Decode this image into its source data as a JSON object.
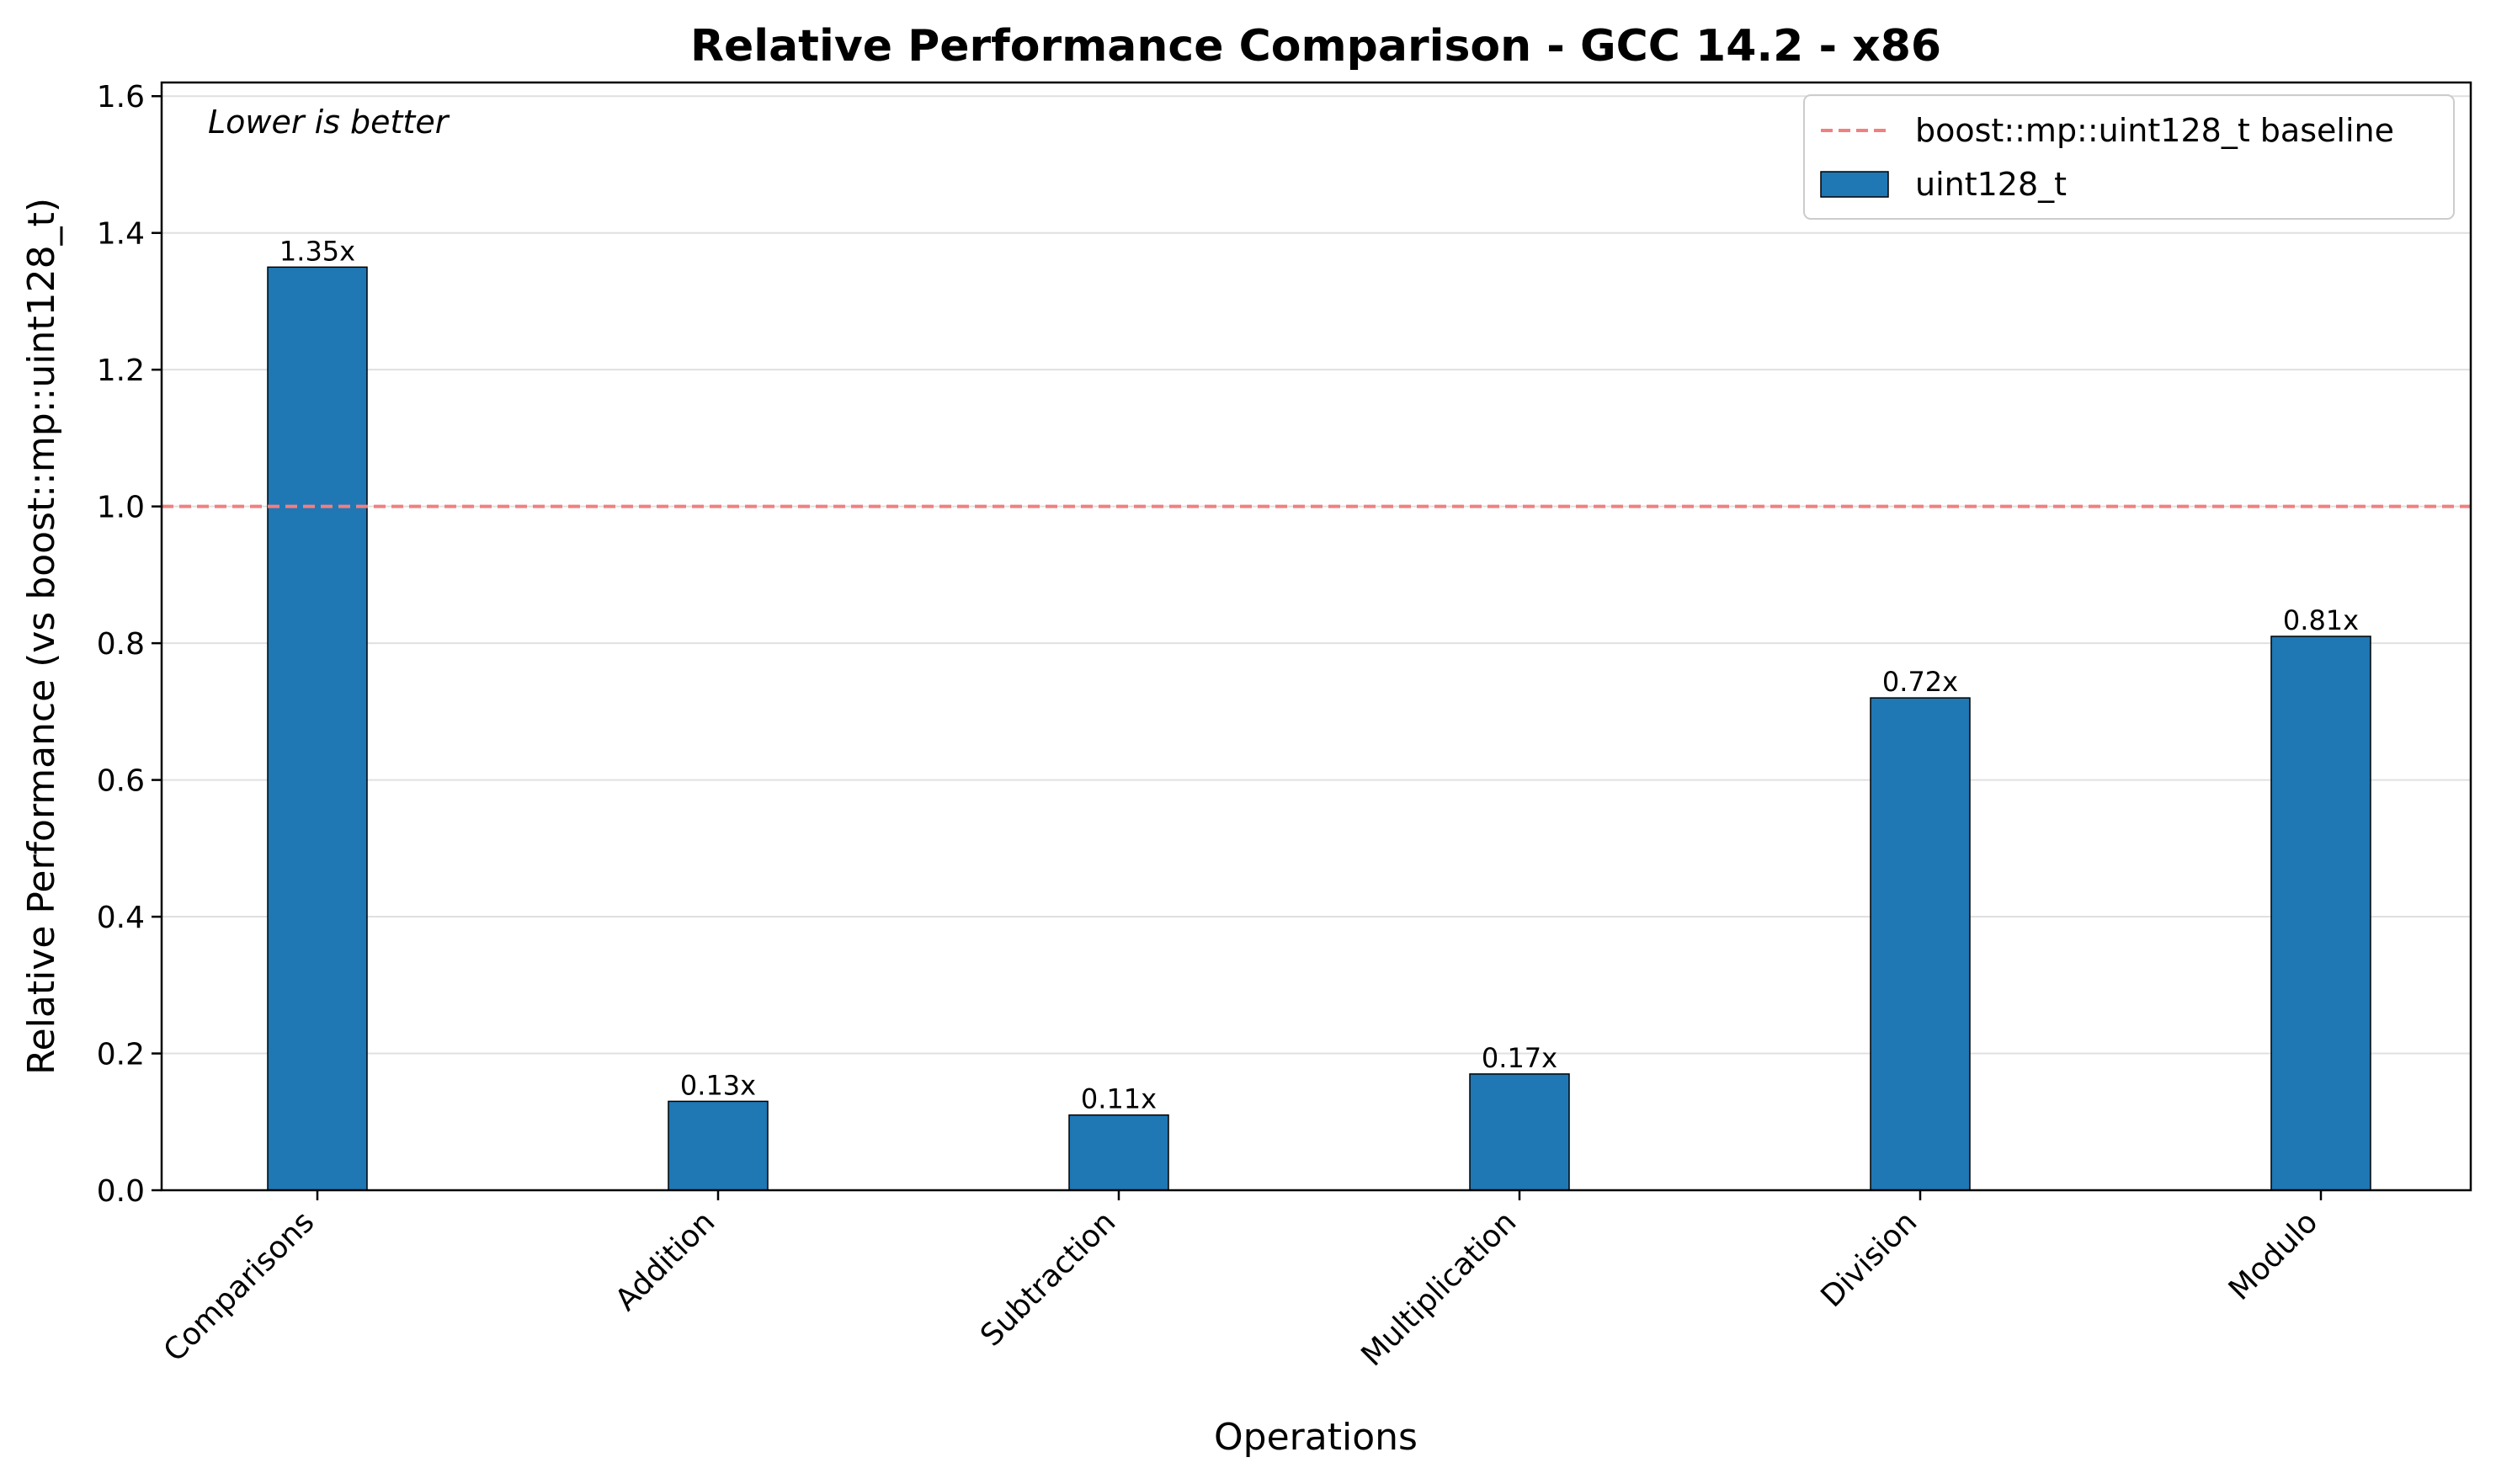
{
  "chart_data": {
    "type": "bar",
    "title": "Relative Performance Comparison - GCC 14.2 - x86",
    "xlabel": "Operations",
    "ylabel": "Relative Performance (vs boost::mp::uint128_t)",
    "annotation": "Lower is better",
    "categories": [
      "Comparisons",
      "Addition",
      "Subtraction",
      "Multiplication",
      "Division",
      "Modulo"
    ],
    "series": [
      {
        "name": "uint128_t",
        "values": [
          1.35,
          0.13,
          0.11,
          0.17,
          0.72,
          0.81
        ],
        "labels": [
          "1.35x",
          "0.13x",
          "0.11x",
          "0.17x",
          "0.72x",
          "0.81x"
        ],
        "color": "#1f77b4"
      }
    ],
    "baseline": {
      "name": "boost::mp::uint128_t baseline",
      "value": 1.0,
      "color": "#f08080",
      "style": "dashed"
    },
    "ylim": [
      0,
      1.62
    ],
    "yticks": [
      0.0,
      0.2,
      0.4,
      0.6,
      0.8,
      1.0,
      1.2,
      1.4,
      1.6
    ],
    "ytick_labels": [
      "0.0",
      "0.2",
      "0.4",
      "0.6",
      "0.8",
      "1.0",
      "1.2",
      "1.4",
      "1.6"
    ],
    "grid": "y",
    "legend_position": "top-right"
  }
}
